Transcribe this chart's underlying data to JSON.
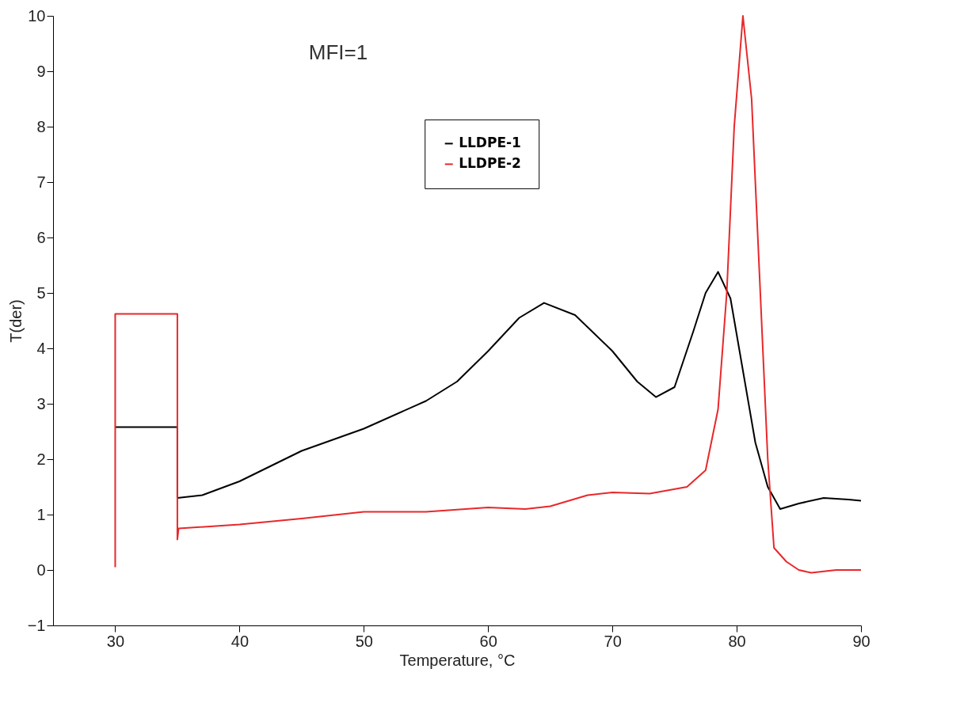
{
  "chart_data": {
    "type": "line",
    "title": "MFI=1",
    "xlabel": "Temperature, °C",
    "ylabel": "T(der)",
    "xlim": [
      25,
      90
    ],
    "xticks": [
      30,
      40,
      50,
      60,
      70,
      80,
      90
    ],
    "ylim": [
      -1,
      10
    ],
    "yticks": [
      -1,
      0,
      1,
      2,
      3,
      4,
      5,
      6,
      7,
      8,
      9,
      10
    ],
    "grid": false,
    "legend": "top",
    "line_style": "solid",
    "series": [
      {
        "name": "LLDPE-1",
        "color": "#000000",
        "x": [
          30,
          35,
          35,
          37,
          40,
          45,
          50,
          55,
          57.5,
          60,
          62.5,
          64.5,
          67,
          70,
          72,
          73.5,
          75,
          76.5,
          77.5,
          78.5,
          79.5,
          80.5,
          81.5,
          82.5,
          83.5,
          85,
          87,
          89,
          90
        ],
        "values": [
          2.58,
          2.58,
          1.3,
          1.35,
          1.6,
          2.15,
          2.55,
          3.05,
          3.4,
          3.95,
          4.55,
          4.82,
          4.6,
          3.95,
          3.4,
          3.12,
          3.3,
          4.3,
          5.0,
          5.38,
          4.9,
          3.6,
          2.3,
          1.5,
          1.1,
          1.2,
          1.3,
          1.27,
          1.25
        ]
      },
      {
        "name": "LLDPE-2",
        "color": "#e8282a",
        "x": [
          30,
          30,
          35,
          35,
          35.1,
          40,
          45,
          50,
          55,
          60,
          63,
          65,
          68,
          70,
          73,
          76,
          77.5,
          78.5,
          79.2,
          79.8,
          80.5,
          81.2,
          81.8,
          82.5,
          83,
          84,
          85,
          86,
          88,
          90
        ],
        "values": [
          0.05,
          4.62,
          4.62,
          0.55,
          0.75,
          0.82,
          0.93,
          1.05,
          1.05,
          1.13,
          1.1,
          1.15,
          1.35,
          1.4,
          1.38,
          1.5,
          1.8,
          2.9,
          5.0,
          8.0,
          10.0,
          8.5,
          5.5,
          2.0,
          0.4,
          0.15,
          0.0,
          -0.05,
          0.0,
          0.0
        ]
      }
    ]
  }
}
